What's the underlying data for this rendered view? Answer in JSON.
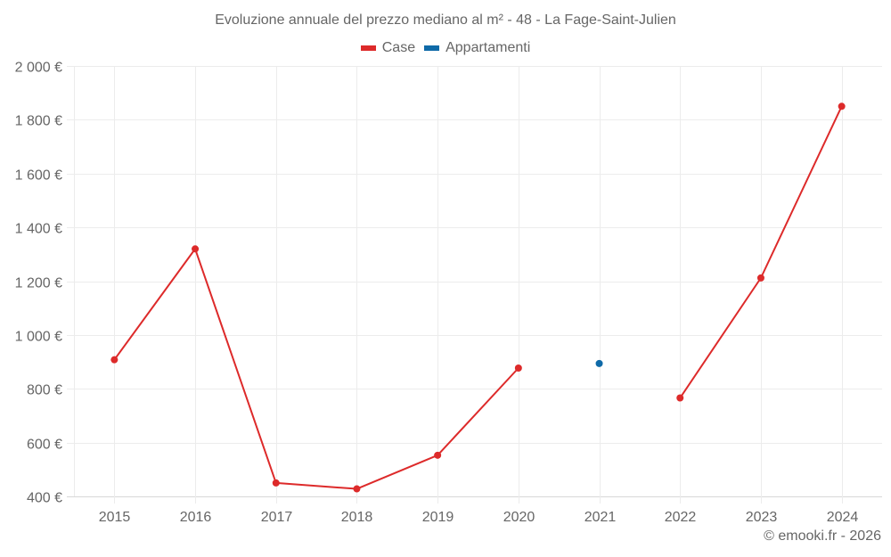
{
  "chart_title": "Evoluzione annuale del prezzo mediano al m² - 48 - La Fage-Saint-Julien",
  "legend": [
    {
      "label": "Case",
      "color": "#dd2a2a"
    },
    {
      "label": "Appartamenti",
      "color": "#0f6aa8"
    }
  ],
  "credit": "© emooki.fr - 2026",
  "colors": {
    "grid": "#ececec",
    "axis": "#d8d8d8",
    "text": "#666666"
  },
  "chart_data": {
    "type": "line",
    "title": "Evoluzione annuale del prezzo mediano al m² - 48 - La Fage-Saint-Julien",
    "xlabel": "",
    "ylabel": "",
    "categories": [
      "2015",
      "2016",
      "2017",
      "2018",
      "2019",
      "2020",
      "2021",
      "2022",
      "2023",
      "2024"
    ],
    "series": [
      {
        "name": "Case",
        "color": "#dd2a2a",
        "values": [
          908,
          1320,
          450,
          428,
          553,
          877,
          null,
          766,
          1212,
          1850
        ]
      },
      {
        "name": "Appartamenti",
        "color": "#0f6aa8",
        "values": [
          null,
          null,
          null,
          null,
          null,
          null,
          894,
          null,
          null,
          null
        ]
      }
    ],
    "ylim": [
      400,
      2000
    ],
    "yticks": [
      400,
      600,
      800,
      1000,
      1200,
      1400,
      1600,
      1800,
      2000
    ],
    "ytick_labels": [
      "400 €",
      "600 €",
      "800 €",
      "1 000 €",
      "1 200 €",
      "1 400 €",
      "1 600 €",
      "1 800 €",
      "2 000 €"
    ],
    "grid": true,
    "legend_position": "top"
  }
}
